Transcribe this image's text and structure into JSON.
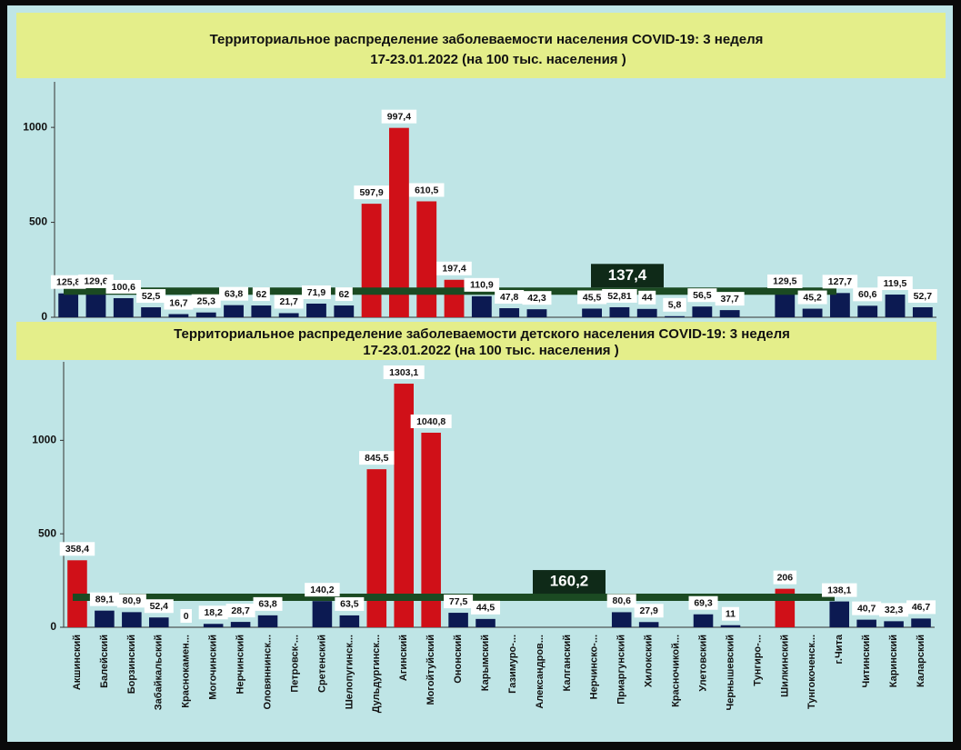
{
  "chart_data": [
    {
      "type": "bar",
      "title": "Территориальное распределение заболеваемости населения COVID-19: 3 неделя",
      "subtitle": "17-23.01.2022 (на 100 тыс. населения )",
      "values": [
        125.8,
        129.6,
        100.6,
        52.5,
        16.7,
        25.3,
        63.8,
        62,
        21.7,
        71.9,
        62,
        597.9,
        997.4,
        610.5,
        197.4,
        110.9,
        47.8,
        42.3,
        null,
        45.5,
        52.81,
        44,
        5.8,
        56.5,
        37.7,
        null,
        129.5,
        45.2,
        127.7,
        60.6,
        119.5,
        52.7
      ],
      "value_labels": [
        "125,8",
        "129,6",
        "100,6",
        "52,5",
        "16,7",
        "25,3",
        "63,8",
        "62",
        "21,7",
        "71,9",
        "62",
        "597,9",
        "997,4",
        "610,5",
        "197,4",
        "110,9",
        "47,8",
        "42,3",
        null,
        "45,5",
        "52,81",
        "44",
        "5,8",
        "56,5",
        "37,7",
        null,
        "129,5",
        "45,2",
        "127,7",
        "60,6",
        "119,5",
        "52,7"
      ],
      "colors": [
        "#0c1a52",
        "#0c1a52",
        "#0c1a52",
        "#0c1a52",
        "#0c1a52",
        "#0c1a52",
        "#0c1a52",
        "#0c1a52",
        "#0c1a52",
        "#0c1a52",
        "#0c1a52",
        "#d01018",
        "#d01018",
        "#d01018",
        "#d01018",
        "#0c1a52",
        "#0c1a52",
        "#0c1a52",
        "#0c1a52",
        "#0c1a52",
        "#0c1a52",
        "#0c1a52",
        "#0c1a52",
        "#0c1a52",
        "#0c1a52",
        "#0c1a52",
        "#0c1a52",
        "#0c1a52",
        "#0c1a52",
        "#0c1a52",
        "#0c1a52",
        "#0c1a52"
      ],
      "average": 137.4,
      "average_label": "137,4",
      "ylim": [
        0,
        1240
      ],
      "yticks": [
        0,
        500,
        1000
      ]
    },
    {
      "type": "bar",
      "title": "Территориальное распределение заболеваемости детского населения COVID-19: 3 неделя",
      "subtitle": "17-23.01.2022 (на 100 тыс. населения )",
      "categories": [
        "Акшинский",
        "Балейский",
        "Борзинский",
        "Забайкальский",
        "Краснокамен...",
        "Могочинский",
        "Нерчинский",
        "Оловяннинск...",
        "Петровск-...",
        "Сретенский",
        "Шелопугинск...",
        "Дульдургинск...",
        "Агинский",
        "Могойтуйский",
        "Ононский",
        "Карымский",
        "Газимуро-...",
        "Александров...",
        "Калганский",
        "Нерчинско-...",
        "Приаргунский",
        "Хилокский",
        "Красночикой...",
        "Улетовский",
        "Чернышевский",
        "Тунгиро-...",
        "Шилкинский",
        "Тунгокоченск...",
        "г.Чита",
        "Читинский",
        "Каринский",
        "Каларский"
      ],
      "values": [
        358.4,
        89.1,
        80.9,
        52.4,
        0,
        18.2,
        28.7,
        63.8,
        null,
        140.2,
        63.5,
        845.5,
        1303.1,
        1040.8,
        77.5,
        44.5,
        null,
        null,
        null,
        null,
        80.6,
        27.9,
        null,
        69.3,
        11,
        null,
        206,
        null,
        138.1,
        40.7,
        32.3,
        46.7
      ],
      "value_labels": [
        "358,4",
        "89,1",
        "80,9",
        "52,4",
        "0",
        "18,2",
        "28,7",
        "63,8",
        null,
        "140,2",
        "63,5",
        "845,5",
        "1303,1",
        "1040,8",
        "77,5",
        "44,5",
        null,
        null,
        null,
        null,
        "80,6",
        "27,9",
        null,
        "69,3",
        "11",
        null,
        "206",
        null,
        "138,1",
        "40,7",
        "32,3",
        "46,7"
      ],
      "colors": [
        "#d01018",
        "#0c1a52",
        "#0c1a52",
        "#0c1a52",
        "#0c1a52",
        "#0c1a52",
        "#0c1a52",
        "#0c1a52",
        "#0c1a52",
        "#0c1a52",
        "#0c1a52",
        "#d01018",
        "#d01018",
        "#d01018",
        "#0c1a52",
        "#0c1a52",
        "#0c1a52",
        "#0c1a52",
        "#0c1a52",
        "#0c1a52",
        "#0c1a52",
        "#0c1a52",
        "#0c1a52",
        "#0c1a52",
        "#0c1a52",
        "#0c1a52",
        "#d01018",
        "#0c1a52",
        "#0c1a52",
        "#0c1a52",
        "#0c1a52",
        "#0c1a52"
      ],
      "average": 160.2,
      "average_label": "160,2",
      "ylim": [
        0,
        1420
      ],
      "yticks": [
        0,
        500,
        1000
      ]
    }
  ]
}
